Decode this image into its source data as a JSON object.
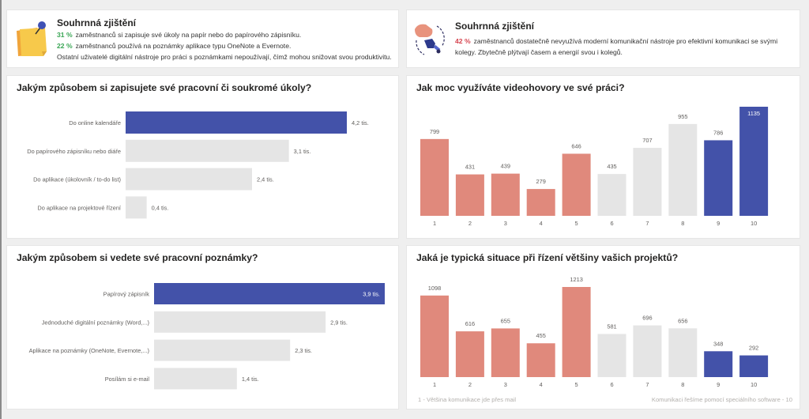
{
  "colors": {
    "blue": "#4352a9",
    "salmon": "#e0897c",
    "gray": "#e5e5e5",
    "green_pct": "#3aa655",
    "red_pct": "#d64550"
  },
  "summary_left": {
    "icon": "sticky-note-icon",
    "title": "Souhrnná zjištění",
    "lines": [
      {
        "pct": "31 %",
        "text": "zaměstnanců si zapisuje své úkoly na papír nebo do papírového zápisníku."
      },
      {
        "pct": "22 %",
        "text": "zaměstnanců používá na poznámky aplikace typu OneNote a Evernote."
      },
      {
        "pct": "",
        "text": "Ostatní uživatelé digitální nástroje pro práci s poznámkami nepoužívají, čímž mohou snižovat svou produktivitu."
      }
    ]
  },
  "summary_right": {
    "icon": "handshake-robot-icon",
    "title": "Souhrnná zjištění",
    "pct": "42 %",
    "line1": "zaměstnanců dostatečně nevyužívá moderní komunikační nástroje pro efektivní komunikaci se svými",
    "line2": "kolegy. Zbytečně plýtvají časem a energií svou i kolegů."
  },
  "chart_data": [
    {
      "id": "tasks",
      "type": "bar",
      "orientation": "horizontal",
      "title": "Jakým způsobem si zapisujete své pracovní či soukromé úkoly?",
      "categories": [
        "Do online kalendáře",
        "Do papírového zápisníku nebo diáře",
        "Do aplikace (úkolovník / to-do list)",
        "Do aplikace na projektové řízení"
      ],
      "values": [
        4.2,
        3.1,
        2.4,
        0.4
      ],
      "labels": [
        "4,2 tis.",
        "3,1 tis.",
        "2,4 tis.",
        "0,4 tis."
      ],
      "highlight": [
        0
      ],
      "unit": "tis.",
      "xlim": [
        0,
        4.2
      ]
    },
    {
      "id": "video",
      "type": "bar",
      "orientation": "vertical",
      "title": "Jak moc využíváte videohovory ve své práci?",
      "categories": [
        "1",
        "2",
        "3",
        "4",
        "5",
        "6",
        "7",
        "8",
        "9",
        "10"
      ],
      "values": [
        799,
        431,
        439,
        279,
        646,
        435,
        707,
        955,
        786,
        1135
      ],
      "color_groups": [
        "salmon",
        "salmon",
        "salmon",
        "salmon",
        "salmon",
        "gray",
        "gray",
        "gray",
        "blue",
        "blue"
      ],
      "ylim": [
        0,
        1135
      ]
    },
    {
      "id": "notes",
      "type": "bar",
      "orientation": "horizontal",
      "title": "Jakým způsobem si vedete své pracovní poznámky?",
      "categories": [
        "Papírový zápisník",
        "Jednoduché digitální poznámky (Word,...)",
        "Aplikace na poznámky (OneNote, Evernote,...)",
        "Posílám si e-mail"
      ],
      "values": [
        3.9,
        2.9,
        2.3,
        1.4
      ],
      "labels": [
        "3,9 tis.",
        "2,9 tis.",
        "2,3 tis.",
        "1,4 tis."
      ],
      "highlight": [
        0
      ],
      "unit": "tis.",
      "xlim": [
        0,
        3.9
      ]
    },
    {
      "id": "projects",
      "type": "bar",
      "orientation": "vertical",
      "title": "Jaká je typická situace při řízení většiny vašich projektů?",
      "categories": [
        "1",
        "2",
        "3",
        "4",
        "5",
        "6",
        "7",
        "8",
        "9",
        "10"
      ],
      "values": [
        1098,
        616,
        655,
        455,
        1213,
        581,
        696,
        656,
        348,
        292
      ],
      "color_groups": [
        "salmon",
        "salmon",
        "salmon",
        "salmon",
        "salmon",
        "gray",
        "gray",
        "gray",
        "blue",
        "blue"
      ],
      "ylim": [
        0,
        1213
      ],
      "annotation_left": "1 - Většina komunikace jde přes mail",
      "annotation_right": "Komunikaci řešíme pomocí speciálního software - 10"
    }
  ]
}
